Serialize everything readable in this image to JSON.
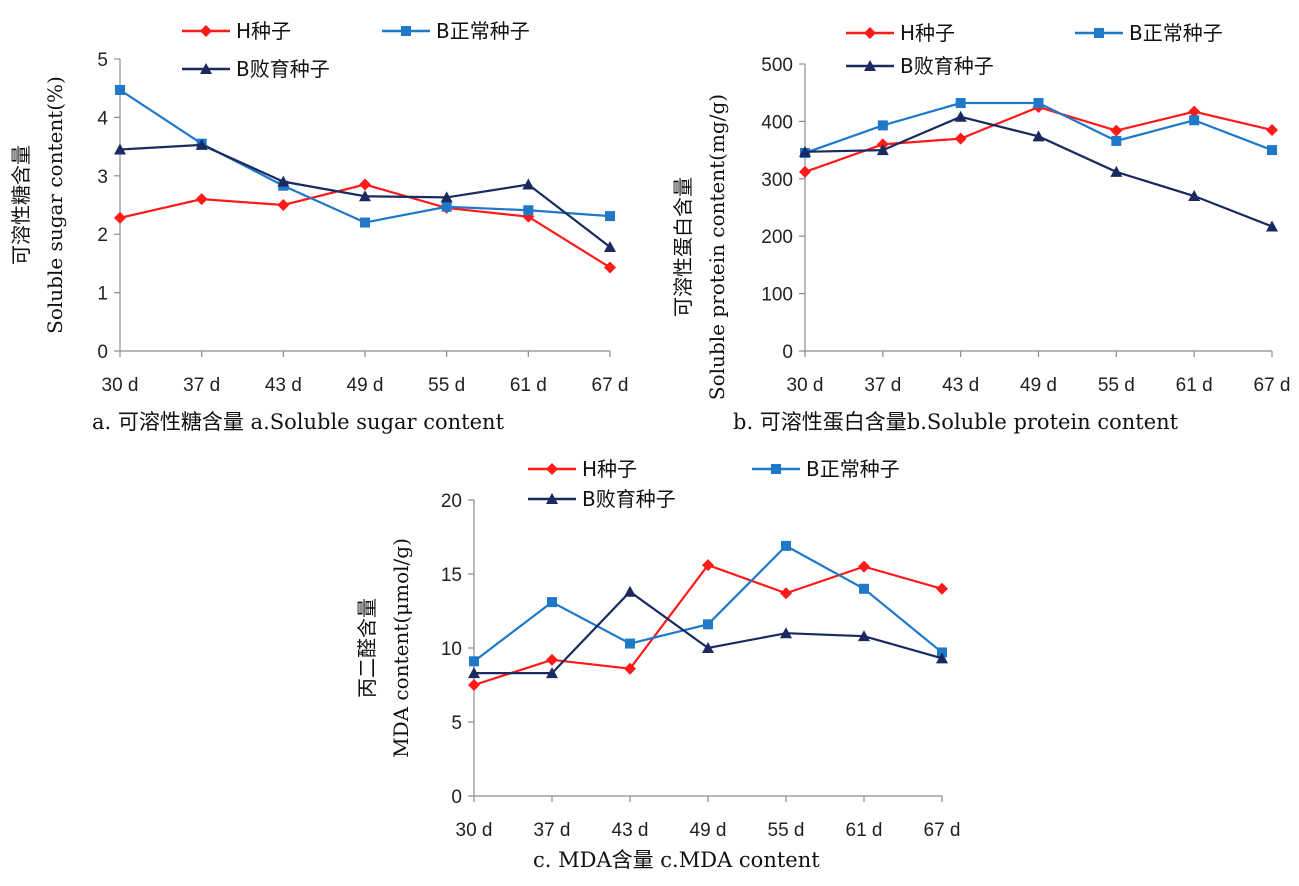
{
  "colors": {
    "H": "#ff1a1a",
    "B_normal": "#1f78c8",
    "B_abort": "#1a2a60"
  },
  "chart_data": [
    {
      "type": "line",
      "categories": [
        "30 d",
        "37 d",
        "43 d",
        "49 d",
        "55 d",
        "61 d",
        "67 d"
      ],
      "ylabel_cn": "可溶性糖含量",
      "ylabel_en": "Soluble sugar content(%)",
      "caption": "a. 可溶性糖含量 a.Soluble sugar content",
      "ylim": [
        0,
        5
      ],
      "yticks": [
        "0",
        "1",
        "2",
        "3",
        "4",
        "5"
      ],
      "grid": false,
      "legend_position": "top",
      "series": [
        {
          "name": "H种子",
          "color": "H",
          "marker": "diamond",
          "values": [
            2.28,
            2.6,
            2.5,
            2.85,
            2.45,
            2.3,
            1.43
          ]
        },
        {
          "name": "B正常种子",
          "color": "B_normal",
          "marker": "square",
          "values": [
            4.47,
            3.55,
            2.83,
            2.2,
            2.47,
            2.41,
            2.31
          ]
        },
        {
          "name": "B败育种子",
          "color": "B_abort",
          "marker": "triangle",
          "values": [
            3.45,
            3.53,
            2.9,
            2.65,
            2.63,
            2.85,
            1.78
          ]
        }
      ]
    },
    {
      "type": "line",
      "categories": [
        "30 d",
        "37 d",
        "43 d",
        "49 d",
        "55 d",
        "61 d",
        "67 d"
      ],
      "ylabel_cn": "可溶性蛋白含量",
      "ylabel_en": "Soluble protein content(mg/g)",
      "caption": "b. 可溶性蛋白含量b.Soluble protein content",
      "ylim": [
        0,
        500
      ],
      "yticks": [
        "0",
        "100",
        "200",
        "300",
        "400",
        "500"
      ],
      "grid": false,
      "legend_position": "top",
      "series": [
        {
          "name": "H种子",
          "color": "H",
          "marker": "diamond",
          "values": [
            312,
            360,
            370,
            425,
            384,
            417,
            385
          ]
        },
        {
          "name": "B正常种子",
          "color": "B_normal",
          "marker": "square",
          "values": [
            345,
            393,
            432,
            432,
            366,
            402,
            350
          ]
        },
        {
          "name": "B败育种子",
          "color": "B_abort",
          "marker": "triangle",
          "values": [
            347,
            350,
            408,
            374,
            312,
            270,
            217
          ]
        }
      ]
    },
    {
      "type": "line",
      "categories": [
        "30 d",
        "37 d",
        "43 d",
        "49 d",
        "55 d",
        "61 d",
        "67 d"
      ],
      "ylabel_cn": "丙二醛含量",
      "ylabel_en": "MDA content(μmol/g)",
      "caption": "c. MDA含量  c.MDA content",
      "ylim": [
        0,
        20
      ],
      "yticks": [
        "0",
        "5",
        "10",
        "15",
        "20"
      ],
      "grid": false,
      "legend_position": "top",
      "series": [
        {
          "name": "H种子",
          "color": "H",
          "marker": "diamond",
          "values": [
            7.5,
            9.2,
            8.6,
            15.6,
            13.7,
            15.5,
            14.0
          ]
        },
        {
          "name": "B正常种子",
          "color": "B_normal",
          "marker": "square",
          "values": [
            9.1,
            13.1,
            10.3,
            11.6,
            16.9,
            14.0,
            9.7
          ]
        },
        {
          "name": "B败育种子",
          "color": "B_abort",
          "marker": "triangle",
          "values": [
            8.3,
            8.3,
            13.8,
            10.0,
            11.0,
            10.8,
            9.3
          ]
        }
      ]
    }
  ]
}
